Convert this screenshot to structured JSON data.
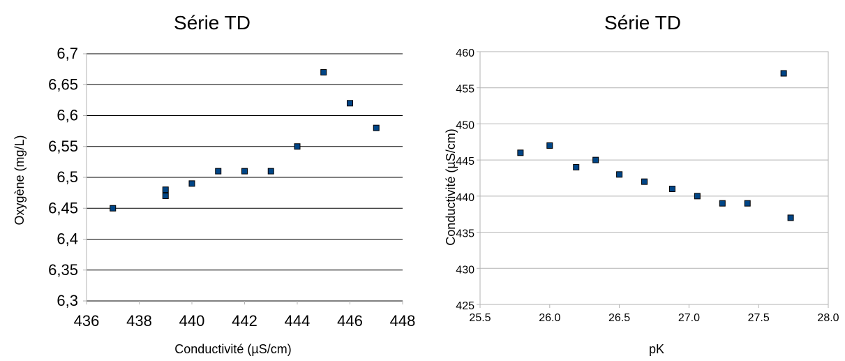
{
  "chart_data": [
    {
      "type": "scatter",
      "title": "Série TD",
      "xlabel": "Conductivité (µS/cm)",
      "ylabel": "Oxygène (mg/L)",
      "xlim": [
        436,
        448
      ],
      "ylim": [
        6.3,
        6.7
      ],
      "x_ticks": [
        "436",
        "438",
        "440",
        "442",
        "444",
        "446",
        "448"
      ],
      "y_ticks": [
        "6,3",
        "6,35",
        "6,4",
        "6,45",
        "6,5",
        "6,55",
        "6,6",
        "6,65",
        "6,7"
      ],
      "grid": true,
      "marker_color": "#004586",
      "points": [
        {
          "x": 437,
          "y": 6.45
        },
        {
          "x": 439,
          "y": 6.47
        },
        {
          "x": 439,
          "y": 6.48
        },
        {
          "x": 440,
          "y": 6.49
        },
        {
          "x": 441,
          "y": 6.51
        },
        {
          "x": 442,
          "y": 6.51
        },
        {
          "x": 443,
          "y": 6.51
        },
        {
          "x": 444,
          "y": 6.55
        },
        {
          "x": 445,
          "y": 6.67
        },
        {
          "x": 446,
          "y": 6.62
        },
        {
          "x": 447,
          "y": 6.58
        }
      ]
    },
    {
      "type": "scatter",
      "title": "Série TD",
      "xlabel": "pK",
      "ylabel": "Conductivité (µS/cm)",
      "xlim": [
        25.5,
        28.0
      ],
      "ylim": [
        425,
        460
      ],
      "x_ticks": [
        "25.5",
        "26.0",
        "26.5",
        "27.0",
        "27.5",
        "28.0"
      ],
      "y_ticks": [
        "425",
        "430",
        "435",
        "440",
        "445",
        "450",
        "455",
        "460"
      ],
      "grid": true,
      "marker_color": "#004586",
      "points": [
        {
          "x": 25.79,
          "y": 446
        },
        {
          "x": 26.0,
          "y": 447
        },
        {
          "x": 26.19,
          "y": 444
        },
        {
          "x": 26.33,
          "y": 445
        },
        {
          "x": 26.5,
          "y": 443
        },
        {
          "x": 26.68,
          "y": 442
        },
        {
          "x": 26.88,
          "y": 441
        },
        {
          "x": 27.06,
          "y": 440
        },
        {
          "x": 27.24,
          "y": 439
        },
        {
          "x": 27.42,
          "y": 439
        },
        {
          "x": 27.68,
          "y": 457
        },
        {
          "x": 27.73,
          "y": 437
        }
      ]
    }
  ]
}
